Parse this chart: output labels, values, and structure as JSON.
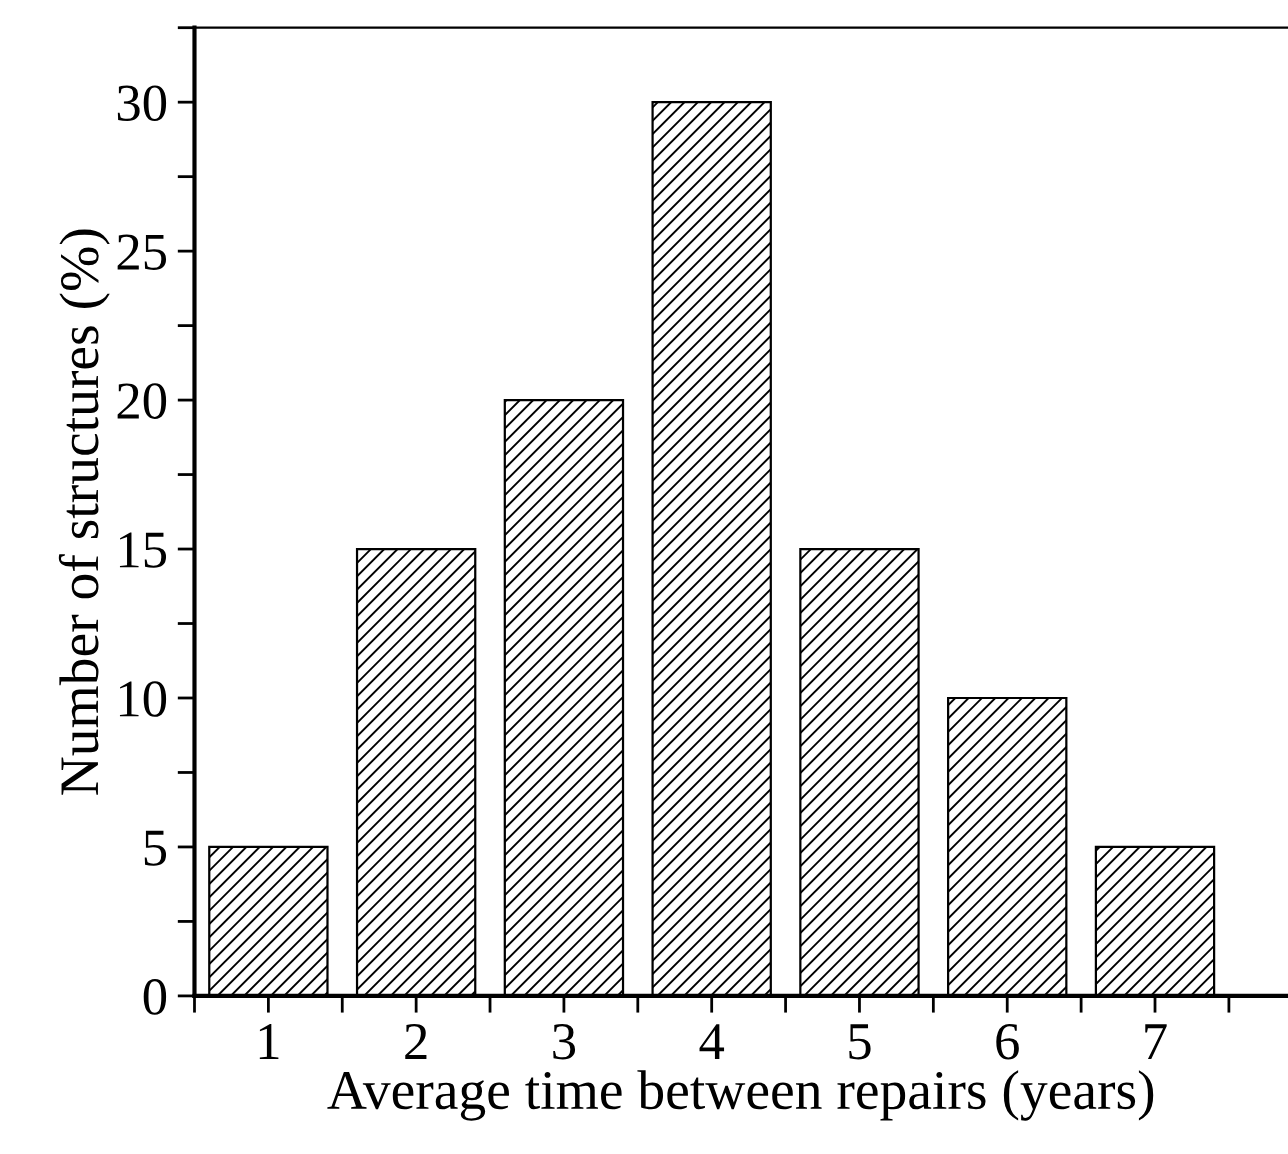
{
  "chart_data": {
    "type": "bar",
    "xlabel": "Average time between repairs (years)",
    "ylabel": "Number of structures (%)",
    "x": [
      1,
      2,
      3,
      4,
      5,
      6,
      7
    ],
    "values": [
      5,
      15,
      20,
      30,
      15,
      10,
      5
    ],
    "color": "#000000",
    "xlim": [
      0.5,
      7.9
    ],
    "xticks": [
      1,
      2,
      3,
      4,
      5,
      6,
      7
    ],
    "ylim": [
      0,
      32.5
    ],
    "yticks": [
      0,
      5,
      10,
      15,
      20,
      25,
      30
    ],
    "grid": false,
    "legend": false
  }
}
